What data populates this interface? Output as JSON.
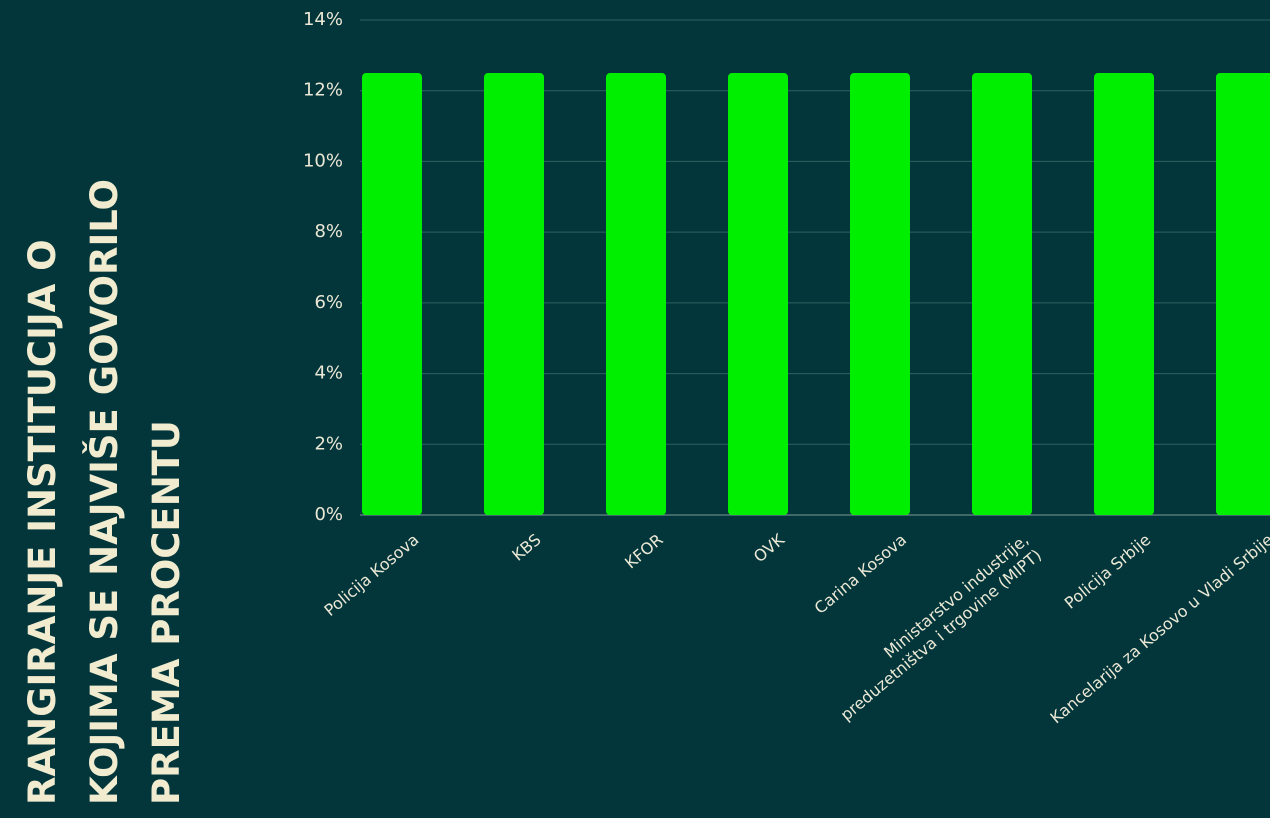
{
  "chart_data": {
    "type": "bar",
    "title": "RANGIRANJE INSTITUCIJA O KOJIMA SE NAJVIŠE GOVORILO PREMA PROCENTU",
    "categories": [
      "Policija Kosova",
      "KBS",
      "KFOR",
      "OVK",
      "Carina Kosova",
      "Ministarstvo industrije, preduzetništva i trgovine (MIPT)",
      "Policija Srbije",
      "Kancelarija za Kosovo u Vladi Srbije"
    ],
    "values": [
      12.5,
      12.5,
      12.5,
      12.5,
      12.5,
      12.5,
      12.5,
      12.5
    ],
    "color": "#00ee00",
    "ylim": [
      0,
      14
    ],
    "yticks": [
      {
        "value": 0,
        "label": "0%"
      },
      {
        "value": 2,
        "label": "2%"
      },
      {
        "value": 4,
        "label": "4%"
      },
      {
        "value": 6,
        "label": "6%"
      },
      {
        "value": 8,
        "label": "8%"
      },
      {
        "value": 10,
        "label": "10%"
      },
      {
        "value": 12,
        "label": "12%"
      },
      {
        "value": 14,
        "label": "14%"
      }
    ],
    "grid": true
  }
}
